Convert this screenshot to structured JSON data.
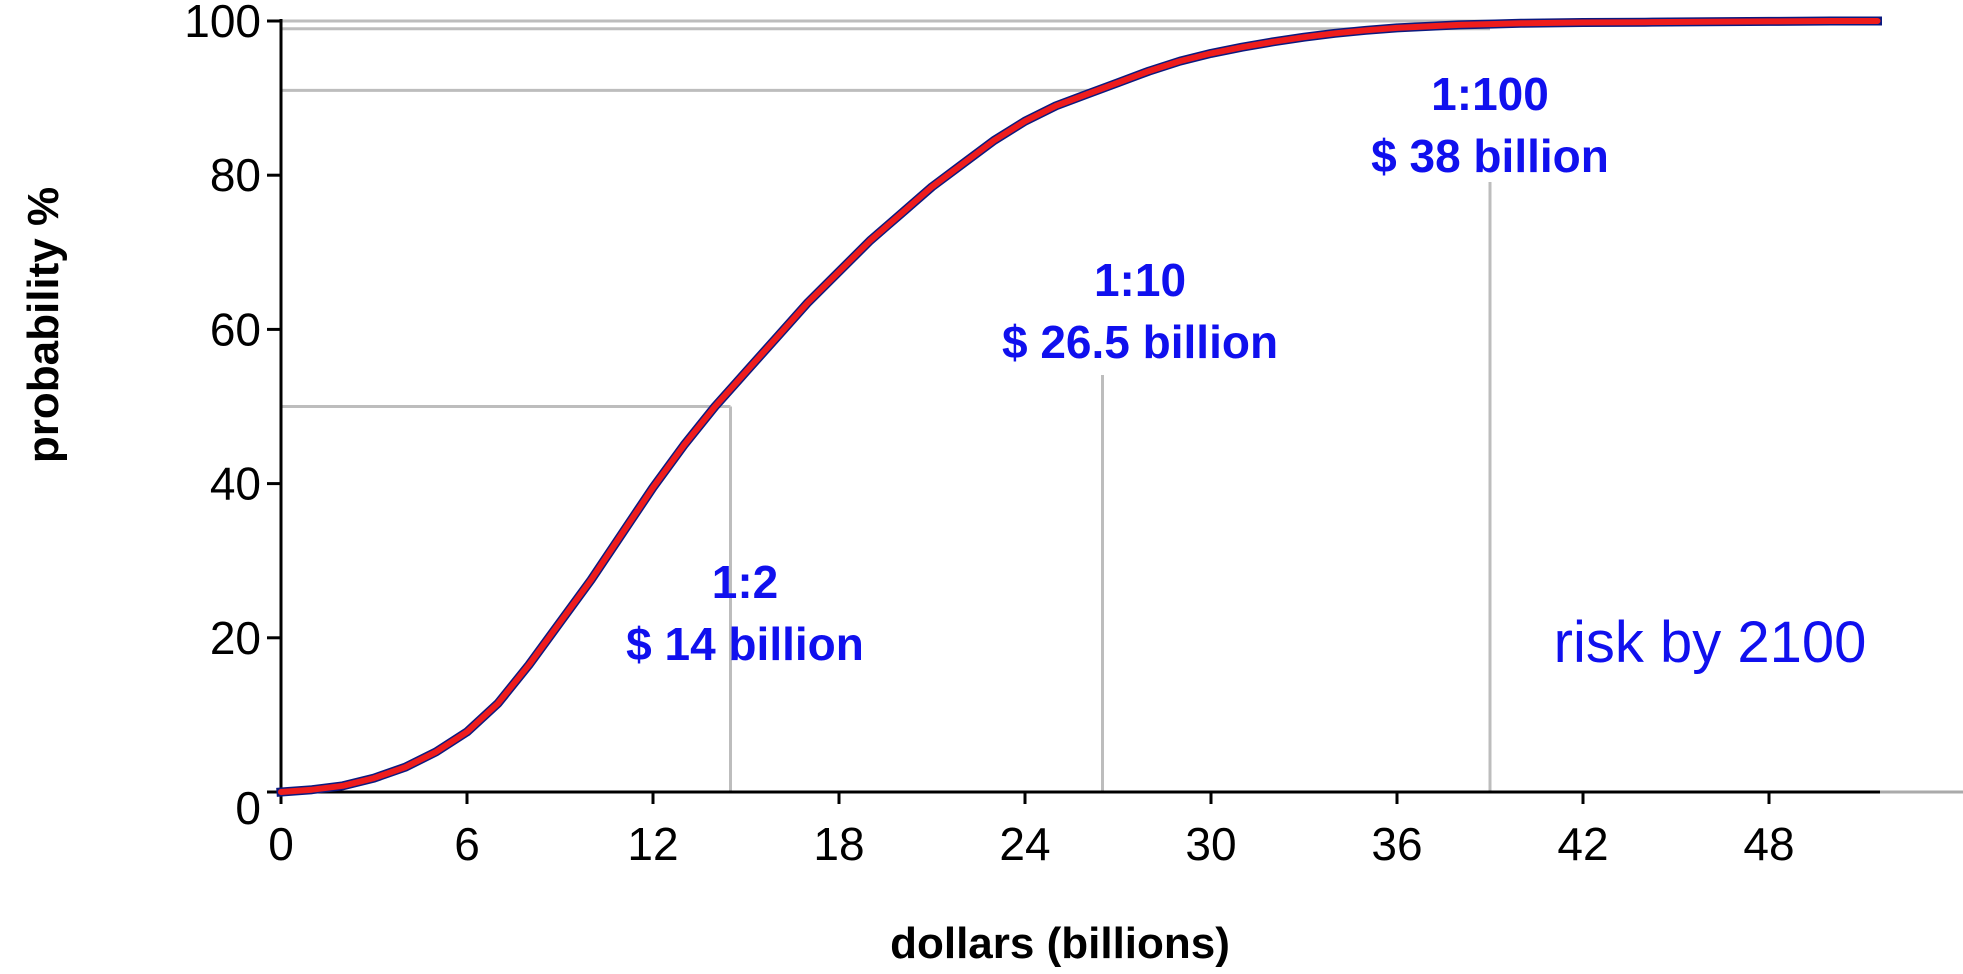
{
  "chart_data": {
    "type": "line",
    "title": "",
    "xlabel": "dollars (billions)",
    "ylabel": "probability %",
    "xlim": [
      0,
      54
    ],
    "ylim": [
      0,
      100
    ],
    "x_ticks": [
      0,
      6,
      12,
      18,
      24,
      30,
      36,
      42,
      48
    ],
    "y_ticks": [
      0,
      20,
      40,
      60,
      80,
      100
    ],
    "grid": false,
    "series": [
      {
        "name": "",
        "color": "#ee1c1c",
        "shadow_color": "#0b1a80",
        "x": [
          0,
          1,
          2,
          3,
          4,
          5,
          6,
          7,
          8,
          9,
          10,
          11,
          12,
          13,
          14,
          15,
          16,
          17,
          18,
          19,
          20,
          21,
          22,
          23,
          24,
          25,
          26,
          27,
          28,
          29,
          30,
          31,
          32,
          33,
          34,
          35,
          36,
          37,
          38,
          39,
          40,
          42,
          44,
          46,
          48,
          50,
          51.5
        ],
        "y": [
          0,
          0.3,
          0.8,
          1.8,
          3.2,
          5.2,
          7.8,
          11.5,
          16.5,
          22,
          27.5,
          33.5,
          39.5,
          45,
          50,
          54.5,
          59,
          63.5,
          67.5,
          71.5,
          75,
          78.5,
          81.5,
          84.5,
          87,
          89,
          90.5,
          92,
          93.5,
          94.8,
          95.8,
          96.6,
          97.3,
          97.9,
          98.4,
          98.8,
          99.1,
          99.3,
          99.5,
          99.6,
          99.7,
          99.8,
          99.85,
          99.9,
          99.95,
          100,
          100
        ]
      }
    ],
    "reference_lines": [
      {
        "x": 14.5,
        "y": 50
      },
      {
        "x": 26.5,
        "y": 91
      },
      {
        "x": 39,
        "y": 99
      }
    ],
    "annotations": [
      {
        "ratio": "1:2",
        "value": "$ 14 billion"
      },
      {
        "ratio": "1:10",
        "value": "$ 26.5 billion"
      },
      {
        "ratio": "1:100",
        "value": "$ 38 billion"
      }
    ],
    "note": "risk by 2100"
  }
}
